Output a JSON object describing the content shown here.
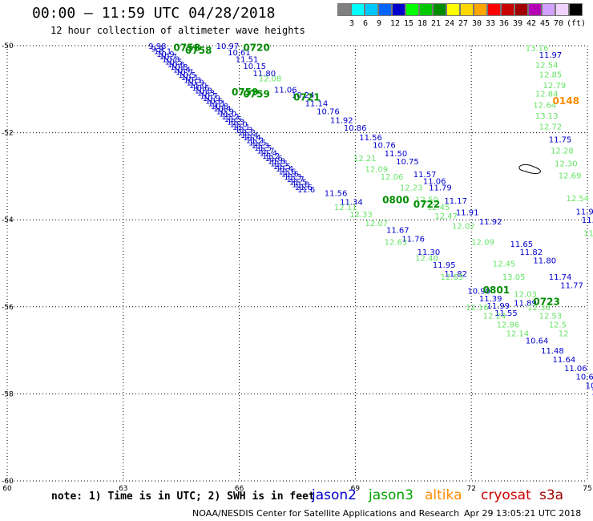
{
  "title": "00:00 – 11:59 UTC 04/28/2018",
  "subtitle": "12 hour collection of altimeter wave heights",
  "legend": {
    "unit": "(ft)",
    "bins": [
      {
        "color": "#7f7f7f",
        "label": ""
      },
      {
        "color": "#00ffff",
        "label": "3"
      },
      {
        "color": "#00c8ff",
        "label": "6"
      },
      {
        "color": "#0064ff",
        "label": "9"
      },
      {
        "color": "#0000cd",
        "label": "12"
      },
      {
        "color": "#00ff00",
        "label": "15"
      },
      {
        "color": "#00c800",
        "label": "18"
      },
      {
        "color": "#008c00",
        "label": "21"
      },
      {
        "color": "#ffff00",
        "label": "24"
      },
      {
        "color": "#ffd700",
        "label": "27"
      },
      {
        "color": "#ffa500",
        "label": "30"
      },
      {
        "color": "#ff0000",
        "label": "33"
      },
      {
        "color": "#c80000",
        "label": "36"
      },
      {
        "color": "#a00000",
        "label": "39"
      },
      {
        "color": "#b400b4",
        "label": "42"
      },
      {
        "color": "#d2a0ff",
        "label": "45"
      },
      {
        "color": "#f0d2ff",
        "label": "70"
      },
      {
        "color": "#000000",
        "label": ""
      }
    ]
  },
  "map": {
    "lon_ticks": [
      "60",
      "63",
      "66",
      "69",
      "72",
      "75"
    ],
    "lat_ticks": [
      "-50",
      "-52",
      "-54",
      "-56",
      "-58",
      "-60"
    ],
    "lon_range": [
      60,
      75
    ],
    "lat_range": [
      -60,
      -50
    ]
  },
  "colors": {
    "jason2": "#0000cd",
    "jason3_time": "#008c00",
    "jason3_swh": "#66e466",
    "altika": "#ff8c00",
    "cryosat": "#cc0000",
    "s3a": "#a00000"
  },
  "time_labels": [
    {
      "text": "0758",
      "sat": "jason3",
      "lon": 64.3,
      "lat": -50.03
    },
    {
      "text": "0758",
      "sat": "jason3",
      "lon": 64.6,
      "lat": -50.09
    },
    {
      "text": "0720",
      "sat": "jason3",
      "lon": 66.1,
      "lat": -50.03
    },
    {
      "text": "0759",
      "sat": "jason3",
      "lon": 65.8,
      "lat": -51.05
    },
    {
      "text": "0759",
      "sat": "jason3",
      "lon": 66.1,
      "lat": -51.1
    },
    {
      "text": "0721",
      "sat": "jason3",
      "lon": 67.4,
      "lat": -51.17
    },
    {
      "text": "0800",
      "sat": "jason3",
      "lon": 69.7,
      "lat": -53.53
    },
    {
      "text": "0722",
      "sat": "jason3",
      "lon": 70.5,
      "lat": -53.63
    },
    {
      "text": "0801",
      "sat": "jason3",
      "lon": 72.3,
      "lat": -55.6
    },
    {
      "text": "0723",
      "sat": "jason3",
      "lon": 73.6,
      "lat": -55.87
    },
    {
      "text": "0148",
      "sat": "altika",
      "lon": 74.1,
      "lat": -51.25
    }
  ],
  "tracks": [
    {
      "sat": "jason2",
      "points": [
        {
          "v": "9.98",
          "lon": 63.65,
          "lat": -50.0
        },
        {
          "v": "9.9",
          "lon": 63.72,
          "lat": -50.06
        },
        {
          "v": "10.1",
          "lon": 63.79,
          "lat": -50.12
        },
        {
          "v": "10.9",
          "lon": 63.86,
          "lat": -50.18
        },
        {
          "v": "10.7",
          "lon": 63.93,
          "lat": -50.24
        },
        {
          "v": "10.8",
          "lon": 64.0,
          "lat": -50.3
        },
        {
          "v": "10.5",
          "lon": 64.07,
          "lat": -50.36
        },
        {
          "v": "10.6",
          "lon": 64.14,
          "lat": -50.42
        },
        {
          "v": "10.8",
          "lon": 64.21,
          "lat": -50.48
        },
        {
          "v": "10.4",
          "lon": 64.28,
          "lat": -50.54
        },
        {
          "v": "10.7",
          "lon": 64.35,
          "lat": -50.6
        },
        {
          "v": "10.5",
          "lon": 64.42,
          "lat": -50.66
        },
        {
          "v": "10.1",
          "lon": 64.49,
          "lat": -50.72
        },
        {
          "v": "10.3",
          "lon": 64.56,
          "lat": -50.78
        },
        {
          "v": "10.9",
          "lon": 64.63,
          "lat": -50.84
        },
        {
          "v": "11.0",
          "lon": 64.7,
          "lat": -50.9
        },
        {
          "v": "10.6",
          "lon": 64.77,
          "lat": -50.96
        },
        {
          "v": "10.8",
          "lon": 64.84,
          "lat": -51.02
        },
        {
          "v": "10.3",
          "lon": 64.91,
          "lat": -51.08
        },
        {
          "v": "10.7",
          "lon": 64.98,
          "lat": -51.14
        },
        {
          "v": "10.9",
          "lon": 65.05,
          "lat": -51.2
        },
        {
          "v": "10.6",
          "lon": 65.12,
          "lat": -51.26
        },
        {
          "v": "11.1",
          "lon": 65.19,
          "lat": -51.32
        },
        {
          "v": "10.8",
          "lon": 65.26,
          "lat": -51.38
        },
        {
          "v": "10.4",
          "lon": 65.33,
          "lat": -51.44
        },
        {
          "v": "10.9",
          "lon": 65.4,
          "lat": -51.5
        },
        {
          "v": "11.0",
          "lon": 65.47,
          "lat": -51.56
        },
        {
          "v": "11.2",
          "lon": 65.54,
          "lat": -51.62
        },
        {
          "v": "11.5",
          "lon": 65.61,
          "lat": -51.68
        },
        {
          "v": "11.3",
          "lon": 65.68,
          "lat": -51.74
        },
        {
          "v": "11.0",
          "lon": 65.75,
          "lat": -51.8
        },
        {
          "v": "11.1",
          "lon": 65.82,
          "lat": -51.86
        },
        {
          "v": "11.3",
          "lon": 65.89,
          "lat": -51.92
        },
        {
          "v": "11.2",
          "lon": 65.96,
          "lat": -51.98
        },
        {
          "v": "11.4",
          "lon": 66.03,
          "lat": -52.04
        },
        {
          "v": "11.4",
          "lon": 66.1,
          "lat": -52.1
        },
        {
          "v": "11.2",
          "lon": 66.17,
          "lat": -52.16
        },
        {
          "v": "11.5",
          "lon": 66.24,
          "lat": -52.22
        },
        {
          "v": "11.3",
          "lon": 66.31,
          "lat": -52.28
        },
        {
          "v": "11.5",
          "lon": 66.38,
          "lat": -52.34
        },
        {
          "v": "11.7",
          "lon": 66.45,
          "lat": -52.4
        },
        {
          "v": "11.4",
          "lon": 66.52,
          "lat": -52.46
        },
        {
          "v": "11.2",
          "lon": 66.59,
          "lat": -52.52
        },
        {
          "v": "11.6",
          "lon": 66.66,
          "lat": -52.58
        },
        {
          "v": "11.8",
          "lon": 66.73,
          "lat": -52.64
        },
        {
          "v": "11.5",
          "lon": 66.8,
          "lat": -52.7
        },
        {
          "v": "11.5",
          "lon": 66.87,
          "lat": -52.76
        },
        {
          "v": "11.4",
          "lon": 66.94,
          "lat": -52.82
        },
        {
          "v": "11.6",
          "lon": 67.01,
          "lat": -52.88
        },
        {
          "v": "11.6",
          "lon": 67.08,
          "lat": -52.94
        },
        {
          "v": "11.3",
          "lon": 67.15,
          "lat": -53.0
        },
        {
          "v": "11.7",
          "lon": 67.22,
          "lat": -53.06
        },
        {
          "v": "11.5",
          "lon": 67.29,
          "lat": -53.12
        },
        {
          "v": "11.8",
          "lon": 67.36,
          "lat": -53.18
        },
        {
          "v": "11.6",
          "lon": 67.43,
          "lat": -53.24
        },
        {
          "v": "11.6",
          "lon": 67.5,
          "lat": -53.3
        }
      ]
    },
    {
      "sat": "jason2",
      "points": [
        {
          "v": "11.56",
          "lon": 68.2,
          "lat": -53.38
        },
        {
          "v": "11.34",
          "lon": 68.6,
          "lat": -53.58
        },
        {
          "v": "11.67",
          "lon": 69.8,
          "lat": -54.23
        },
        {
          "v": "11.76",
          "lon": 70.2,
          "lat": -54.43
        },
        {
          "v": "11.30",
          "lon": 70.6,
          "lat": -54.73
        },
        {
          "v": "11.95",
          "lon": 71.0,
          "lat": -55.03
        },
        {
          "v": "11.82",
          "lon": 71.3,
          "lat": -55.23
        },
        {
          "v": "10.90",
          "lon": 71.9,
          "lat": -55.63
        },
        {
          "v": "11.39",
          "lon": 72.2,
          "lat": -55.8
        },
        {
          "v": "11.99",
          "lon": 72.4,
          "lat": -55.97
        },
        {
          "v": "11.55",
          "lon": 72.6,
          "lat": -56.13
        },
        {
          "v": "10.64",
          "lon": 73.4,
          "lat": -56.77
        },
        {
          "v": "11.48",
          "lon": 73.8,
          "lat": -57.0
        },
        {
          "v": "11.64",
          "lon": 74.1,
          "lat": -57.2
        },
        {
          "v": "11.06",
          "lon": 74.4,
          "lat": -57.4
        },
        {
          "v": "10.69",
          "lon": 74.7,
          "lat": -57.6
        },
        {
          "v": "10.33",
          "lon": 74.95,
          "lat": -57.8
        },
        {
          "v": "10.1",
          "lon": 75.1,
          "lat": -57.95
        }
      ]
    },
    {
      "sat": "jason2",
      "points": [
        {
          "v": "10.97",
          "lon": 65.4,
          "lat": -50.0
        },
        {
          "v": "10.61",
          "lon": 65.7,
          "lat": -50.15
        },
        {
          "v": "11.51",
          "lon": 65.9,
          "lat": -50.3
        },
        {
          "v": "10.15",
          "lon": 66.1,
          "lat": -50.46
        },
        {
          "v": "11.80",
          "lon": 66.35,
          "lat": -50.63
        },
        {
          "v": "11.06",
          "lon": 66.9,
          "lat": -51.0
        },
        {
          "v": "10.24",
          "lon": 67.35,
          "lat": -51.12
        },
        {
          "v": "11.14",
          "lon": 67.7,
          "lat": -51.32
        },
        {
          "v": "10.76",
          "lon": 68.0,
          "lat": -51.5
        },
        {
          "v": "11.92",
          "lon": 68.35,
          "lat": -51.7
        },
        {
          "v": "10.86",
          "lon": 68.7,
          "lat": -51.88
        },
        {
          "v": "11.56",
          "lon": 69.1,
          "lat": -52.1
        },
        {
          "v": "10.76",
          "lon": 69.45,
          "lat": -52.27
        },
        {
          "v": "11.50",
          "lon": 69.75,
          "lat": -52.47
        },
        {
          "v": "10.75",
          "lon": 70.05,
          "lat": -52.65
        },
        {
          "v": "11.57",
          "lon": 70.5,
          "lat": -52.95
        },
        {
          "v": "11.06",
          "lon": 70.75,
          "lat": -53.1
        },
        {
          "v": "11.79",
          "lon": 70.9,
          "lat": -53.25
        },
        {
          "v": "11.17",
          "lon": 71.3,
          "lat": -53.55
        },
        {
          "v": "11.91",
          "lon": 71.6,
          "lat": -53.82
        },
        {
          "v": "11.92",
          "lon": 72.2,
          "lat": -54.03
        },
        {
          "v": "11.65",
          "lon": 73.0,
          "lat": -54.55
        },
        {
          "v": "11.82",
          "lon": 73.25,
          "lat": -54.73
        },
        {
          "v": "11.80",
          "lon": 73.6,
          "lat": -54.93
        },
        {
          "v": "11.74",
          "lon": 74.0,
          "lat": -55.3
        },
        {
          "v": "11.77",
          "lon": 74.3,
          "lat": -55.5
        },
        {
          "v": "11.89",
          "lon": 73.1,
          "lat": -55.9
        }
      ]
    },
    {
      "sat": "jason2",
      "points": [
        {
          "v": "11.97",
          "lon": 73.75,
          "lat": -50.2
        },
        {
          "v": "11.75",
          "lon": 74.0,
          "lat": -52.15
        },
        {
          "v": "11.90",
          "lon": 74.7,
          "lat": -53.8
        },
        {
          "v": "11.7",
          "lon": 74.85,
          "lat": -54.0
        }
      ]
    },
    {
      "sat": "jason3",
      "points": [
        {
          "v": "12.08",
          "lon": 66.5,
          "lat": -50.75
        },
        {
          "v": "12.21",
          "lon": 68.95,
          "lat": -52.58
        },
        {
          "v": "12.09",
          "lon": 69.25,
          "lat": -52.83
        },
        {
          "v": "12.06",
          "lon": 69.65,
          "lat": -53.0
        },
        {
          "v": "12.23",
          "lon": 70.15,
          "lat": -53.25
        },
        {
          "v": "12.50",
          "lon": 70.55,
          "lat": -53.53
        },
        {
          "v": "12.45",
          "lon": 70.85,
          "lat": -53.7
        },
        {
          "v": "12.47",
          "lon": 71.05,
          "lat": -53.9
        },
        {
          "v": "12.02",
          "lon": 71.5,
          "lat": -54.13
        },
        {
          "v": "12.09",
          "lon": 72.0,
          "lat": -54.5
        },
        {
          "v": "12.45",
          "lon": 72.55,
          "lat": -55.0
        },
        {
          "v": "13.05",
          "lon": 72.8,
          "lat": -55.3
        },
        {
          "v": "12.03",
          "lon": 73.1,
          "lat": -55.7
        },
        {
          "v": "12.38",
          "lon": 73.45,
          "lat": -56.0
        },
        {
          "v": "12.53",
          "lon": 73.75,
          "lat": -56.2
        },
        {
          "v": "12.5",
          "lon": 74.0,
          "lat": -56.4
        },
        {
          "v": "12",
          "lon": 74.25,
          "lat": -56.6
        }
      ]
    },
    {
      "sat": "jason3",
      "points": [
        {
          "v": "12.11",
          "lon": 68.45,
          "lat": -53.7
        },
        {
          "v": "12.33",
          "lon": 68.85,
          "lat": -53.87
        },
        {
          "v": "12.07",
          "lon": 69.25,
          "lat": -54.07
        },
        {
          "v": "12.63",
          "lon": 69.75,
          "lat": -54.5
        },
        {
          "v": "12.40",
          "lon": 70.55,
          "lat": -54.87
        },
        {
          "v": "12.63",
          "lon": 71.2,
          "lat": -55.3
        },
        {
          "v": "12.16",
          "lon": 71.85,
          "lat": -56.0
        },
        {
          "v": "12.24",
          "lon": 72.3,
          "lat": -56.2
        },
        {
          "v": "12.86",
          "lon": 72.65,
          "lat": -56.4
        },
        {
          "v": "12.14",
          "lon": 72.9,
          "lat": -56.6
        }
      ]
    },
    {
      "sat": "jason3",
      "points": [
        {
          "v": "13.16",
          "lon": 73.4,
          "lat": -50.05
        },
        {
          "v": "12.54",
          "lon": 73.65,
          "lat": -50.43
        },
        {
          "v": "12.85",
          "lon": 73.75,
          "lat": -50.65
        },
        {
          "v": "12.79",
          "lon": 73.85,
          "lat": -50.9
        },
        {
          "v": "12.84",
          "lon": 73.65,
          "lat": -51.1
        },
        {
          "v": "12.64",
          "lon": 73.6,
          "lat": -51.35
        },
        {
          "v": "13.13",
          "lon": 73.65,
          "lat": -51.6
        },
        {
          "v": "12.72",
          "lon": 73.75,
          "lat": -51.85
        },
        {
          "v": "12.28",
          "lon": 74.05,
          "lat": -52.4
        },
        {
          "v": "12.30",
          "lon": 74.15,
          "lat": -52.7
        },
        {
          "v": "12.69",
          "lon": 74.25,
          "lat": -52.97
        },
        {
          "v": "12.54",
          "lon": 74.45,
          "lat": -53.5
        },
        {
          "v": "11.9",
          "lon": 74.9,
          "lat": -54.3
        }
      ]
    }
  ],
  "note": "note: 1) Time is in UTC; 2) SWH is in feet",
  "satellites": [
    {
      "name": "jason2",
      "color": "#0000cd"
    },
    {
      "name": "jason3",
      "color": "#00a000"
    },
    {
      "name": "altika",
      "color": "#ff8c00"
    },
    {
      "name": "cryosat",
      "color": "#cc0000"
    },
    {
      "name": "s3a",
      "color": "#a00000"
    }
  ],
  "footer_left": "NOAA/NESDIS Center for Satellite Applications and Research",
  "footer_right": "Apr 29 13:05:21 UTC 2018"
}
